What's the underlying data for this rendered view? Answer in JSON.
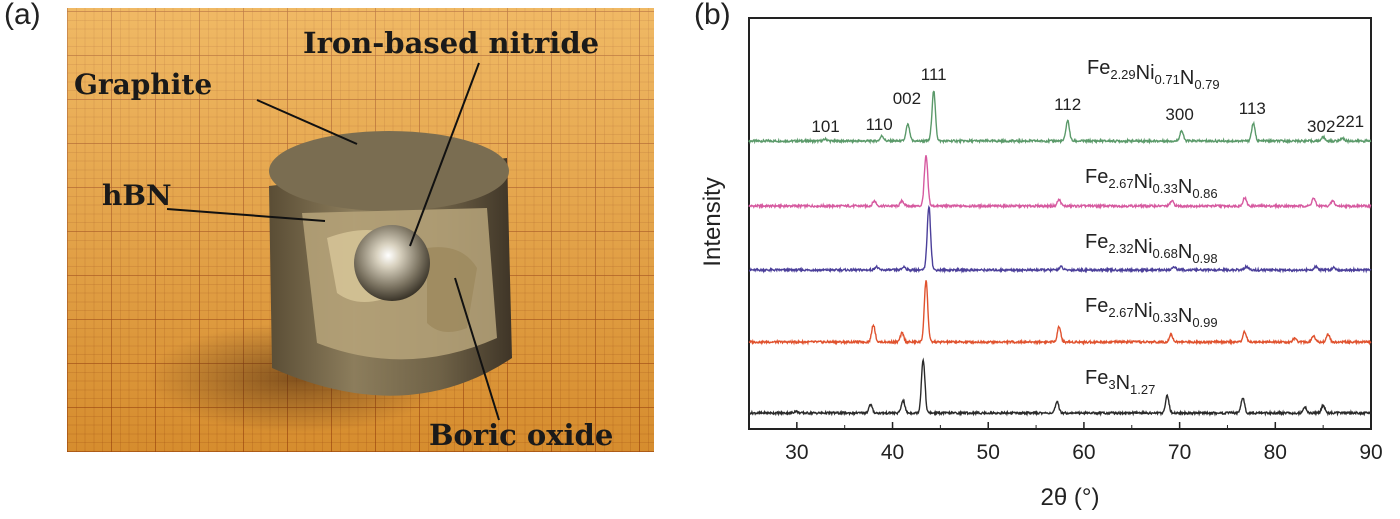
{
  "panel_a": {
    "label": "(a)",
    "annotations": {
      "graphite": "Graphite",
      "hbn": "hBN",
      "iron_nitride": "Iron-based nitride",
      "boric_oxide": "Boric oxide"
    }
  },
  "panel_b": {
    "label": "(b)"
  },
  "chart_data": {
    "type": "line",
    "xlabel": "2θ (°)",
    "ylabel": "Intensity",
    "xlim": [
      25,
      90
    ],
    "xticks": [
      "30",
      "40",
      "50",
      "60",
      "70",
      "80",
      "90"
    ],
    "grid": false,
    "peak_labels": [
      {
        "text": "101",
        "x": 33.0
      },
      {
        "text": "110",
        "x": 38.6
      },
      {
        "text": "002",
        "x": 41.5
      },
      {
        "text": "111",
        "x": 44.3
      },
      {
        "text": "112",
        "x": 58.3
      },
      {
        "text": "300",
        "x": 70.0
      },
      {
        "text": "113",
        "x": 77.6
      },
      {
        "text": "302",
        "x": 84.8
      },
      {
        "text": "221",
        "x": 87.8
      }
    ],
    "series": [
      {
        "name": "Fe2.29Ni0.71N0.79",
        "label_parts": [
          "Fe",
          "2.29",
          "Ni",
          "0.71",
          "N",
          "0.79"
        ],
        "color": "#5b9a6a",
        "peaks": [
          [
            33.0,
            0.03
          ],
          [
            38.9,
            0.08
          ],
          [
            41.6,
            0.26
          ],
          [
            44.3,
            0.78
          ],
          [
            58.3,
            0.32
          ],
          [
            70.2,
            0.16
          ],
          [
            77.7,
            0.27
          ],
          [
            85.0,
            0.06
          ],
          [
            87.0,
            0.05
          ]
        ]
      },
      {
        "name": "Fe2.67Ni0.33N0.86",
        "label_parts": [
          "Fe",
          "2.67",
          "Ni",
          "0.33",
          "N",
          "0.86"
        ],
        "color": "#d65aa0",
        "peaks": [
          [
            38.1,
            0.08
          ],
          [
            41.0,
            0.08
          ],
          [
            43.5,
            0.78
          ],
          [
            57.4,
            0.1
          ],
          [
            69.2,
            0.08
          ],
          [
            76.8,
            0.13
          ],
          [
            84.0,
            0.12
          ],
          [
            86.0,
            0.08
          ]
        ]
      },
      {
        "name": "Fe2.32Ni0.68N0.98",
        "label_parts": [
          "Fe",
          "2.32",
          "Ni",
          "0.68",
          "N",
          "0.98"
        ],
        "color": "#4b3f9a",
        "peaks": [
          [
            38.3,
            0.05
          ],
          [
            41.2,
            0.05
          ],
          [
            43.8,
            0.99
          ],
          [
            57.6,
            0.05
          ],
          [
            69.4,
            0.05
          ],
          [
            77.0,
            0.05
          ],
          [
            84.2,
            0.05
          ],
          [
            86.1,
            0.04
          ]
        ]
      },
      {
        "name": "Fe2.67Ni0.33N0.99",
        "label_parts": [
          "Fe",
          "2.67",
          "Ni",
          "0.33",
          "N",
          "0.99"
        ],
        "color": "#e0522e",
        "peaks": [
          [
            38.0,
            0.27
          ],
          [
            41.0,
            0.14
          ],
          [
            43.5,
            0.96
          ],
          [
            57.4,
            0.24
          ],
          [
            69.1,
            0.12
          ],
          [
            76.8,
            0.16
          ],
          [
            82.0,
            0.05
          ],
          [
            84.0,
            0.1
          ],
          [
            85.5,
            0.12
          ]
        ]
      },
      {
        "name": "Fe3N1.27",
        "label_parts": [
          "Fe",
          "3",
          "N",
          "1.27",
          "",
          ""
        ],
        "color": "#2a2a2a",
        "peaks": [
          [
            29.9,
            0.03
          ],
          [
            37.7,
            0.13
          ],
          [
            41.1,
            0.2
          ],
          [
            43.2,
            0.84
          ],
          [
            57.2,
            0.17
          ],
          [
            68.7,
            0.27
          ],
          [
            76.6,
            0.24
          ],
          [
            83.1,
            0.09
          ],
          [
            85.0,
            0.12
          ]
        ]
      }
    ]
  }
}
